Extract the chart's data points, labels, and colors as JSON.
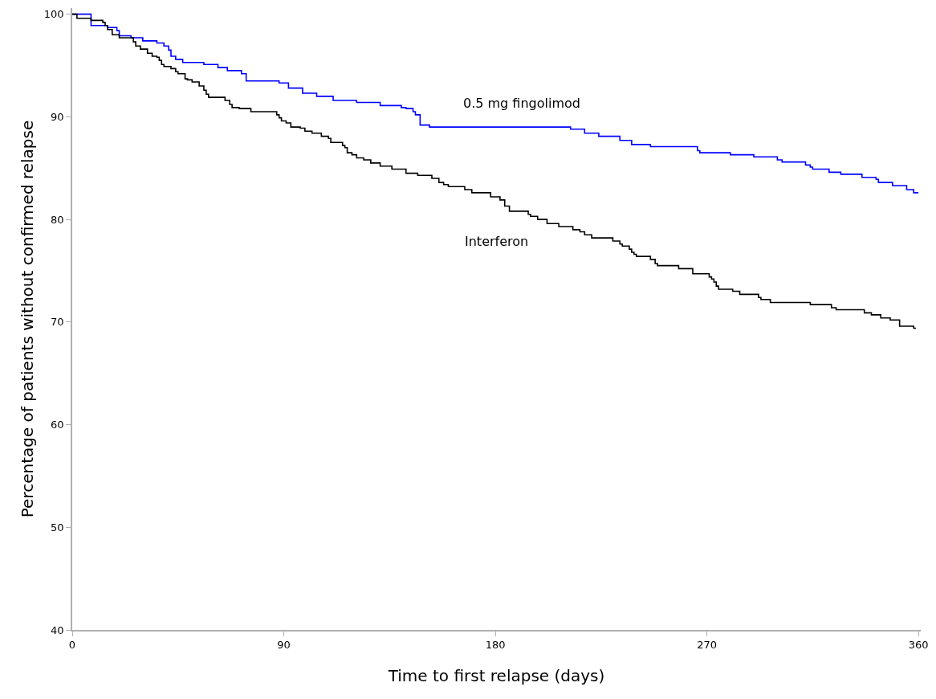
{
  "chart_data": {
    "type": "step",
    "xlabel": "Time to first relapse (days)",
    "ylabel": "Percentage of patients without confirmed relapse",
    "xlim": [
      0,
      361
    ],
    "xticks": [
      0,
      90,
      180,
      270,
      360
    ],
    "ylim": [
      40,
      100.6
    ],
    "yticks": [
      40,
      50,
      60,
      70,
      80,
      90,
      100
    ],
    "legend": false,
    "marker": "none",
    "line_style": "solid",
    "series": [
      {
        "name": "0.5 mg fingolimod",
        "color": "#0000ff",
        "x": [
          0,
          8,
          15,
          19,
          20,
          25,
          30,
          36,
          39,
          41,
          42,
          44,
          47,
          56,
          62,
          66,
          72,
          74,
          88,
          92,
          98,
          104,
          111,
          121,
          131,
          140,
          142,
          145,
          146,
          148,
          152,
          212,
          218,
          224,
          233,
          238,
          246,
          266,
          267,
          280,
          290,
          300,
          302,
          312,
          314,
          315,
          322,
          327,
          336,
          342,
          343,
          349,
          355,
          358,
          360
        ],
        "values": [
          100,
          98.9,
          98.7,
          98.4,
          97.9,
          97.7,
          97.4,
          97.2,
          96.9,
          96.5,
          95.9,
          95.6,
          95.3,
          95.1,
          94.8,
          94.5,
          94.2,
          93.5,
          93.3,
          92.8,
          92.3,
          92.0,
          91.6,
          91.4,
          91.1,
          90.9,
          90.8,
          90.5,
          90.2,
          89.2,
          89.0,
          88.8,
          88.4,
          88.1,
          87.7,
          87.3,
          87.1,
          86.7,
          86.5,
          86.3,
          86.1,
          85.8,
          85.6,
          85.3,
          85.1,
          84.9,
          84.6,
          84.4,
          84.1,
          83.9,
          83.6,
          83.3,
          82.9,
          82.6,
          82.6
        ]
      },
      {
        "name": "Interferon",
        "color": "#000000",
        "x": [
          0,
          2,
          8,
          13,
          14,
          15,
          17,
          20,
          26,
          27,
          29,
          32,
          34,
          36,
          37,
          38,
          39,
          42,
          44,
          45,
          48,
          49,
          51,
          54,
          56,
          57,
          58,
          65,
          67,
          68,
          71,
          76,
          87,
          88,
          89,
          91,
          93,
          97,
          99,
          102,
          106,
          109,
          110,
          115,
          116,
          117,
          119,
          121,
          124,
          127,
          131,
          136,
          142,
          147,
          153,
          156,
          158,
          160,
          167,
          170,
          178,
          182,
          184,
          186,
          194,
          195,
          198,
          202,
          207,
          213,
          216,
          218,
          221,
          230,
          233,
          234,
          237,
          238,
          239,
          240,
          246,
          248,
          249,
          258,
          264,
          271,
          272,
          273,
          274,
          275,
          281,
          284,
          292,
          293,
          297,
          314,
          323,
          325,
          337,
          340,
          344,
          348,
          352,
          358,
          359
        ],
        "values": [
          100,
          99.6,
          99.4,
          99.2,
          98.9,
          98.5,
          98.0,
          97.7,
          97.3,
          96.9,
          96.6,
          96.2,
          95.9,
          95.8,
          95.5,
          95.1,
          94.9,
          94.7,
          94.4,
          94.2,
          93.7,
          93.6,
          93.4,
          93.0,
          92.6,
          92.2,
          91.9,
          91.6,
          91.2,
          90.9,
          90.8,
          90.5,
          90.2,
          89.9,
          89.6,
          89.4,
          89.0,
          88.9,
          88.6,
          88.4,
          88.1,
          87.9,
          87.5,
          87.2,
          87.0,
          86.5,
          86.3,
          86.0,
          85.8,
          85.5,
          85.2,
          84.9,
          84.5,
          84.3,
          84.0,
          83.6,
          83.4,
          83.2,
          82.9,
          82.6,
          82.2,
          81.9,
          81.3,
          80.8,
          80.5,
          80.3,
          80.0,
          79.6,
          79.3,
          79.0,
          78.8,
          78.5,
          78.2,
          77.9,
          77.6,
          77.4,
          77.1,
          76.8,
          76.6,
          76.4,
          76.1,
          75.7,
          75.5,
          75.2,
          74.7,
          74.4,
          74.2,
          73.9,
          73.5,
          73.2,
          73.0,
          72.7,
          72.4,
          72.2,
          71.9,
          71.7,
          71.4,
          71.2,
          70.9,
          70.7,
          70.4,
          70.2,
          69.6,
          69.4,
          69.4
        ]
      }
    ]
  }
}
